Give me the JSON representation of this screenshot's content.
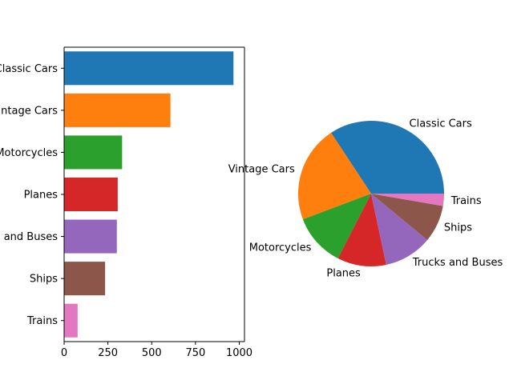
{
  "chart_data": [
    {
      "type": "bar",
      "orientation": "horizontal",
      "categories": [
        "Classic Cars",
        "Vintage Cars",
        "Motorcycles",
        "Planes",
        "Trucks and Buses",
        "Ships",
        "Trains"
      ],
      "visible_category_labels": [
        "Classic Cars",
        "Vintage Cars",
        "Motorcycles",
        "Planes",
        "and Buses",
        "Ships",
        "Trains"
      ],
      "values": [
        967,
        607,
        331,
        306,
        301,
        234,
        77
      ],
      "colors": [
        "#1f77b4",
        "#ff7f0e",
        "#2ca02c",
        "#d62728",
        "#9467bd",
        "#8c564b",
        "#e377c2"
      ],
      "xlim": [
        0,
        1000
      ],
      "xticks": [
        0,
        250,
        500,
        750,
        1000
      ],
      "xtick_labels": [
        "0",
        "250",
        "500",
        "750",
        "1000"
      ],
      "grid": false,
      "title": "",
      "xlabel": "",
      "ylabel": ""
    },
    {
      "type": "pie",
      "labels": [
        "Classic Cars",
        "Vintage Cars",
        "Motorcycles",
        "Planes",
        "Trucks and Buses",
        "Ships",
        "Trains"
      ],
      "values": [
        967,
        607,
        331,
        306,
        301,
        234,
        77
      ],
      "colors": [
        "#1f77b4",
        "#ff7f0e",
        "#2ca02c",
        "#d62728",
        "#9467bd",
        "#8c564b",
        "#e377c2"
      ],
      "start_angle_deg": 0,
      "direction": "counterclockwise",
      "title": ""
    }
  ]
}
